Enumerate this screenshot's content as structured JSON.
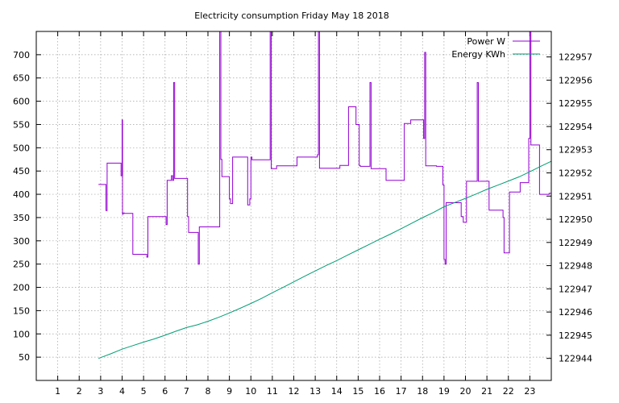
{
  "chart_data": {
    "type": "line",
    "title": "Electricity consumption Friday May 18 2018",
    "xlabel": "",
    "ylabel": "",
    "y2label": "",
    "xlim": [
      0,
      24
    ],
    "ylim": [
      0,
      750
    ],
    "y2lim": [
      122943.05,
      122958.1
    ],
    "x_ticks": [
      1,
      2,
      3,
      4,
      5,
      6,
      7,
      8,
      9,
      10,
      11,
      12,
      13,
      14,
      15,
      16,
      17,
      18,
      19,
      20,
      21,
      22,
      23
    ],
    "y_ticks": [
      50,
      100,
      150,
      200,
      250,
      300,
      350,
      400,
      450,
      500,
      550,
      600,
      650,
      700
    ],
    "y2_ticks": [
      122944,
      122945,
      122946,
      122947,
      122948,
      122949,
      122950,
      122951,
      122952,
      122953,
      122954,
      122955,
      122956,
      122957
    ],
    "grid": true,
    "legend_position": "top-right",
    "series": [
      {
        "name": "Power W",
        "axis": "left",
        "color": "#9400d3",
        "x": [
          2.9,
          3.2,
          3.25,
          3.3,
          3.9,
          3.95,
          4.0,
          4.02,
          4.05,
          4.1,
          4.4,
          4.5,
          5.1,
          5.15,
          5.2,
          6.0,
          6.05,
          6.1,
          6.3,
          6.35,
          6.4,
          6.45,
          7.0,
          7.05,
          7.1,
          7.5,
          7.55,
          7.6,
          8.5,
          8.55,
          8.6,
          8.65,
          8.95,
          9.0,
          9.05,
          9.15,
          9.8,
          9.85,
          9.9,
          9.95,
          10.0,
          10.05,
          10.85,
          10.9,
          10.95,
          11.2,
          12.1,
          12.15,
          13.0,
          13.1,
          13.15,
          13.2,
          14.1,
          14.15,
          14.5,
          14.55,
          14.85,
          14.9,
          15.05,
          15.1,
          15.5,
          15.55,
          15.6,
          16.2,
          16.3,
          17.1,
          17.15,
          17.4,
          17.45,
          18.0,
          18.05,
          18.1,
          18.15,
          18.6,
          18.65,
          18.9,
          18.95,
          19.0,
          19.05,
          19.1,
          19.2,
          19.25,
          19.8,
          19.85,
          19.9,
          20.05,
          20.5,
          20.55,
          20.6,
          21.05,
          21.1,
          21.7,
          21.75,
          21.8,
          22.0,
          22.05,
          22.5,
          22.55,
          22.9,
          22.95,
          23.0,
          23.05,
          23.4,
          23.45,
          23.9,
          24.0
        ],
        "values": [
          421,
          421,
          365,
          467,
          467,
          440,
          560,
          357,
          360,
          359,
          359,
          271,
          271,
          265,
          352,
          352,
          335,
          430,
          440,
          430,
          640,
          434,
          434,
          352,
          318,
          318,
          250,
          330,
          330,
          750,
          475,
          438,
          438,
          390,
          380,
          480,
          480,
          377,
          377,
          390,
          480,
          474,
          474,
          750,
          455,
          461,
          461,
          480,
          480,
          485,
          750,
          456,
          456,
          462,
          462,
          588,
          588,
          550,
          462,
          460,
          460,
          640,
          455,
          455,
          430,
          430,
          552,
          552,
          560,
          560,
          520,
          705,
          461,
          461,
          460,
          460,
          420,
          260,
          250,
          382,
          382,
          382,
          352,
          352,
          340,
          428,
          428,
          640,
          428,
          428,
          366,
          366,
          350,
          274,
          274,
          405,
          405,
          425,
          425,
          520,
          750,
          506,
          506,
          400,
          402,
          402
        ]
      },
      {
        "name": "Energy KWh",
        "axis": "right",
        "color": "#009e73",
        "x": [
          2.9,
          3.5,
          4.0,
          4.5,
          5.0,
          5.5,
          6.0,
          6.5,
          7.0,
          7.5,
          8.0,
          8.5,
          9.0,
          9.5,
          10.0,
          10.5,
          11.0,
          11.5,
          12.0,
          12.5,
          13.0,
          13.5,
          14.0,
          14.5,
          15.0,
          15.5,
          16.0,
          16.5,
          17.0,
          17.5,
          18.0,
          18.5,
          19.0,
          19.5,
          20.0,
          20.5,
          21.0,
          21.5,
          22.0,
          22.5,
          23.0,
          23.5,
          24.0
        ],
        "values": [
          122944.0,
          122944.21,
          122944.4,
          122944.55,
          122944.7,
          122944.84,
          122945.0,
          122945.17,
          122945.33,
          122945.45,
          122945.6,
          122945.77,
          122945.96,
          122946.16,
          122946.37,
          122946.59,
          122946.83,
          122947.06,
          122947.3,
          122947.54,
          122947.77,
          122948.0,
          122948.22,
          122948.45,
          122948.68,
          122948.91,
          122949.14,
          122949.36,
          122949.59,
          122949.83,
          122950.07,
          122950.29,
          122950.54,
          122950.72,
          122950.9,
          122951.09,
          122951.29,
          122951.47,
          122951.65,
          122951.83,
          122952.05,
          122952.28,
          122952.5
        ]
      }
    ]
  }
}
